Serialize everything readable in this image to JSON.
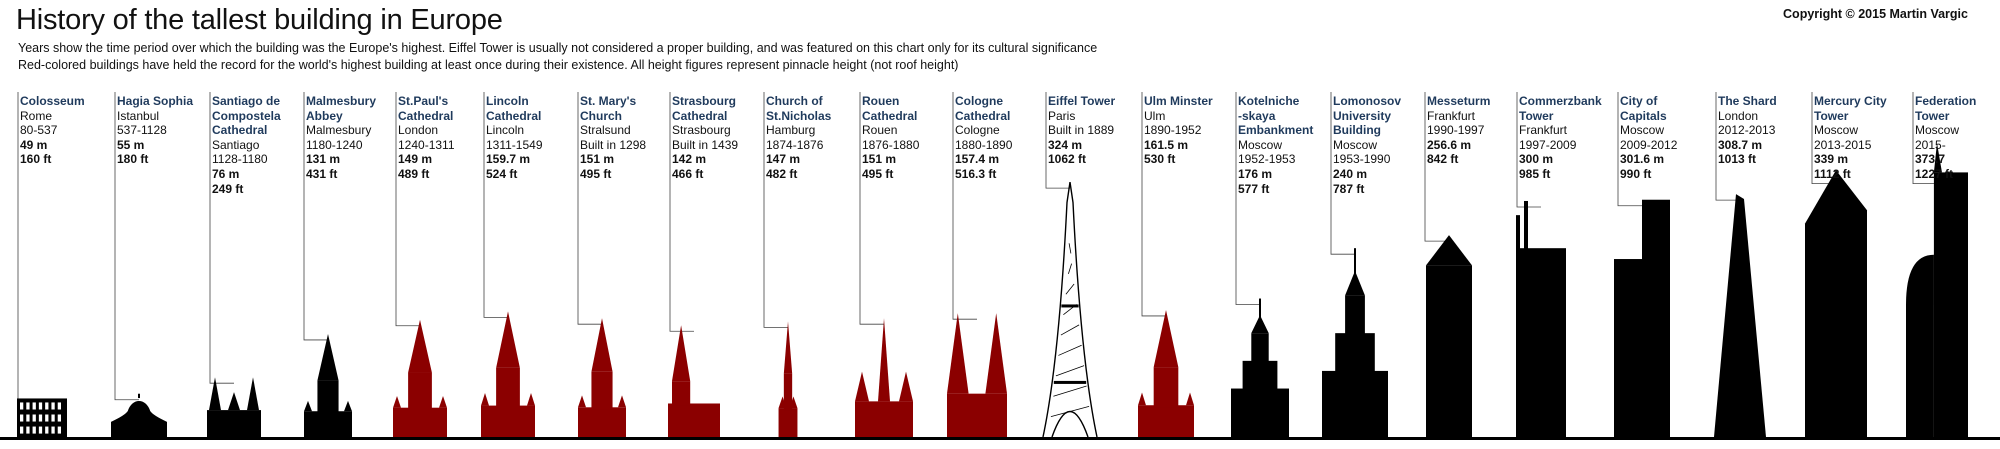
{
  "title": "History of the tallest building in Europe",
  "subtitle": [
    "Years show the time period over which the building was the Europe's highest. Eiffel Tower is usually not considered a proper building, and was featured on this chart only for its cultural significance",
    "Red-colored buildings have held the record for the world's highest building at least once during  their existence. All height figures represent pinnacle height (not roof height)"
  ],
  "copyright": "Copyright © 2015 Martin Vargic",
  "colors": {
    "black": "#000000",
    "red": "#8b0000",
    "name": "#1f3a5c",
    "leader": "#444444"
  },
  "buildings": [
    {
      "name": [
        "Colosseum"
      ],
      "city": "Rome",
      "period": "80-537",
      "m": "49 m",
      "ft": "160 ft",
      "color": "black",
      "shape": "colosseum"
    },
    {
      "name": [
        "Hagia Sophia"
      ],
      "city": "Istanbul",
      "period": "537-1128",
      "m": "55 m",
      "ft": "180 ft",
      "color": "black",
      "shape": "dome"
    },
    {
      "name": [
        "Santiago de",
        "Compostela",
        "Cathedral"
      ],
      "city": "Santiago",
      "period": "1128-1180",
      "m": "76 m",
      "ft": "249 ft",
      "color": "black",
      "shape": "twin-towers"
    },
    {
      "name": [
        "Malmesbury",
        "Abbey"
      ],
      "city": "Malmesbury",
      "period": "1180-1240",
      "m": "131 m",
      "ft": "431 ft",
      "color": "black",
      "shape": "spire"
    },
    {
      "name": [
        "St.Paul's",
        "Cathedral"
      ],
      "city": "London",
      "period": "1240-1311",
      "m": "149 m",
      "ft": "489 ft",
      "color": "red",
      "shape": "spire"
    },
    {
      "name": [
        "Lincoln",
        "Cathedral"
      ],
      "city": "Lincoln",
      "period": "1311-1549",
      "m": "159.7 m",
      "ft": "524 ft",
      "color": "red",
      "shape": "spire"
    },
    {
      "name": [
        "St. Mary's",
        "Church"
      ],
      "city": "Stralsund",
      "period": "Built in 1298",
      "m": "151 m",
      "ft": "495 ft",
      "color": "red",
      "shape": "spire"
    },
    {
      "name": [
        "Strasbourg",
        "Cathedral"
      ],
      "city": "Strasbourg",
      "period": "Built in 1439",
      "m": "142 m",
      "ft": "466 ft",
      "color": "red",
      "shape": "side-spire"
    },
    {
      "name": [
        "Church of",
        "St.Nicholas"
      ],
      "city": "Hamburg",
      "period": "1874-1876",
      "m": "147 m",
      "ft": "482 ft",
      "color": "red",
      "shape": "slim-spire"
    },
    {
      "name": [
        "Rouen",
        "Cathedral"
      ],
      "city": "Rouen",
      "period": "1876-1880",
      "m": "151 m",
      "ft": "495 ft",
      "color": "red",
      "shape": "three-spires"
    },
    {
      "name": [
        "Cologne",
        "Cathedral"
      ],
      "city": "Cologne",
      "period": "1880-1890",
      "m": "157.4 m",
      "ft": "516.3 ft",
      "color": "red",
      "shape": "twin-spires"
    },
    {
      "name": [
        "Eiffel Tower"
      ],
      "city": "Paris",
      "period": "Built in 1889",
      "m": "324 m",
      "ft": "1062 ft",
      "color": "black",
      "shape": "eiffel"
    },
    {
      "name": [
        "Ulm Minster"
      ],
      "city": "Ulm",
      "period": "1890-1952",
      "m": "161.5 m",
      "ft": "530 ft",
      "color": "red",
      "shape": "spire"
    },
    {
      "name": [
        "Kotelniche",
        "-skaya",
        "Embankment"
      ],
      "city": "Moscow",
      "period": "1952-1953",
      "m": "176 m",
      "ft": "577 ft",
      "color": "black",
      "shape": "stalinist"
    },
    {
      "name": [
        "Lomonosov",
        "University",
        "Building"
      ],
      "city": "Moscow",
      "period": "1953-1990",
      "m": "240 m",
      "ft": "787 ft",
      "color": "black",
      "shape": "stalinist"
    },
    {
      "name": [
        "Messeturm"
      ],
      "city": "Frankfurt",
      "period": "1990-1997",
      "m": "256.6 m",
      "ft": "842 ft",
      "color": "black",
      "shape": "messeturm"
    },
    {
      "name": [
        "Commerzbank",
        "Tower"
      ],
      "city": "Frankfurt",
      "period": "1997-2009",
      "m": "300 m",
      "ft": "985 ft",
      "color": "black",
      "shape": "commerz"
    },
    {
      "name": [
        "City of",
        "Capitals"
      ],
      "city": "Moscow",
      "period": "2009-2012",
      "m": "301.6 m",
      "ft": "990 ft",
      "color": "black",
      "shape": "capitals"
    },
    {
      "name": [
        "The Shard"
      ],
      "city": "London",
      "period": "2012-2013",
      "m": "308.7 m",
      "ft": "1013 ft",
      "color": "black",
      "shape": "shard"
    },
    {
      "name": [
        "Mercury City",
        "Tower"
      ],
      "city": "Moscow",
      "period": "2013-2015",
      "m": "339 m",
      "ft": "1112 ft",
      "color": "black",
      "shape": "mercury"
    },
    {
      "name": [
        "Federation",
        "Tower"
      ],
      "city": "Moscow",
      "period": "2015-",
      "m": "373.7",
      "ft": "1227 ft",
      "color": "black",
      "shape": "federation"
    }
  ]
}
